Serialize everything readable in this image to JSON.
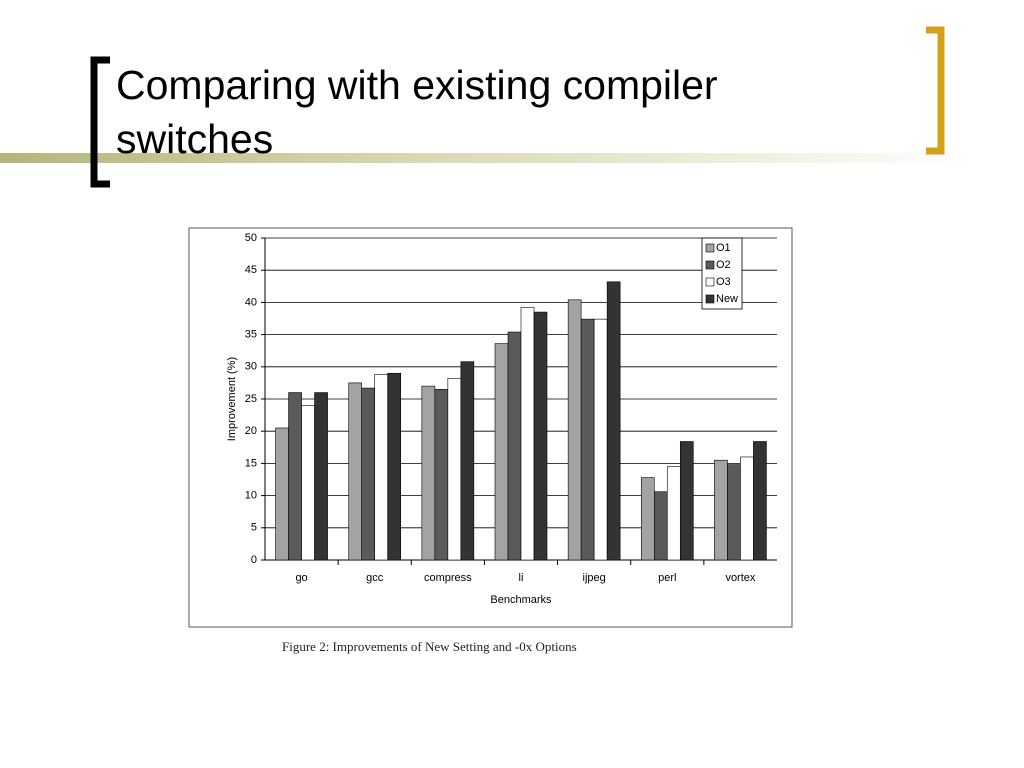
{
  "slide_title": "Comparing with existing compiler switches",
  "figure_caption": "Figure 2: Improvements of New Setting and -0x Options",
  "chart_data": {
    "type": "bar",
    "ylabel": "Improvement (%)",
    "xlabel": "Benchmarks",
    "categories": [
      "go",
      "gcc",
      "compress",
      "li",
      "ijpeg",
      "perl",
      "vortex"
    ],
    "series": [
      {
        "name": "O1",
        "color": "#a3a3a3",
        "values": [
          20.5,
          27.5,
          27,
          33.6,
          40.4,
          12.8,
          15.5
        ]
      },
      {
        "name": "O2",
        "color": "#5a5a5a",
        "values": [
          26,
          26.7,
          26.5,
          35.4,
          37.4,
          10.6,
          14.8
        ]
      },
      {
        "name": "O3",
        "color": "#ffffff",
        "values": [
          24,
          28.8,
          28.2,
          39.2,
          37.4,
          14.5,
          16
        ]
      },
      {
        "name": "New",
        "color": "#333333",
        "values": [
          26,
          29,
          30.8,
          38.5,
          43.2,
          18.4,
          18.4
        ]
      }
    ],
    "ylim": [
      0,
      50
    ],
    "yticks": [
      0,
      5,
      10,
      15,
      20,
      25,
      30,
      35,
      40,
      45,
      50
    ],
    "grid": true,
    "legend": "upper right"
  }
}
